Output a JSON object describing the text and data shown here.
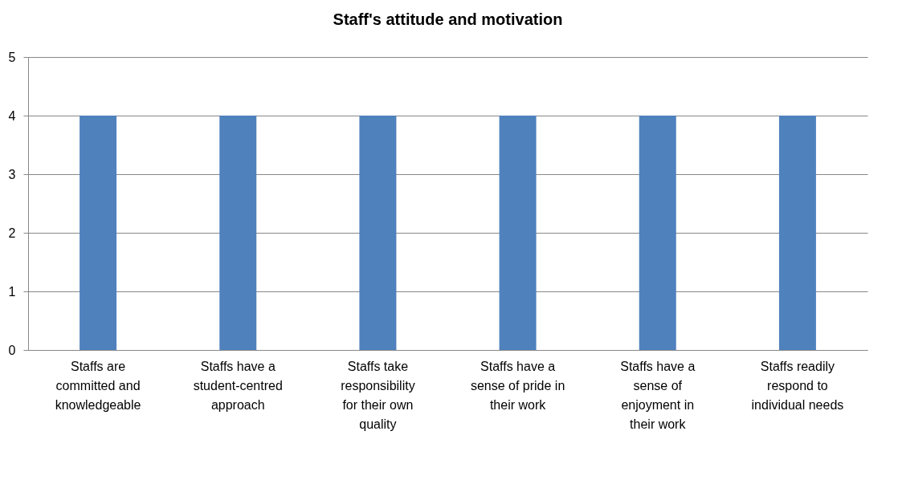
{
  "chart_data": {
    "type": "bar",
    "title": "Staff's attitude and motivation",
    "categories": [
      "Staffs are committed and knowledgeable",
      "Staffs have a student-centred approach",
      "Staffs take responsibility for their own quality",
      "Staffs have a sense of pride in their work",
      "Staffs have a sense of enjoyment in their work",
      "Staffs readily respond to individual needs"
    ],
    "values": [
      4,
      4,
      4,
      4,
      4,
      4
    ],
    "color": "#4f81bd",
    "ylim": [
      0,
      5
    ],
    "yticks": [
      0,
      1,
      2,
      3,
      4,
      5
    ],
    "grid": "y"
  }
}
